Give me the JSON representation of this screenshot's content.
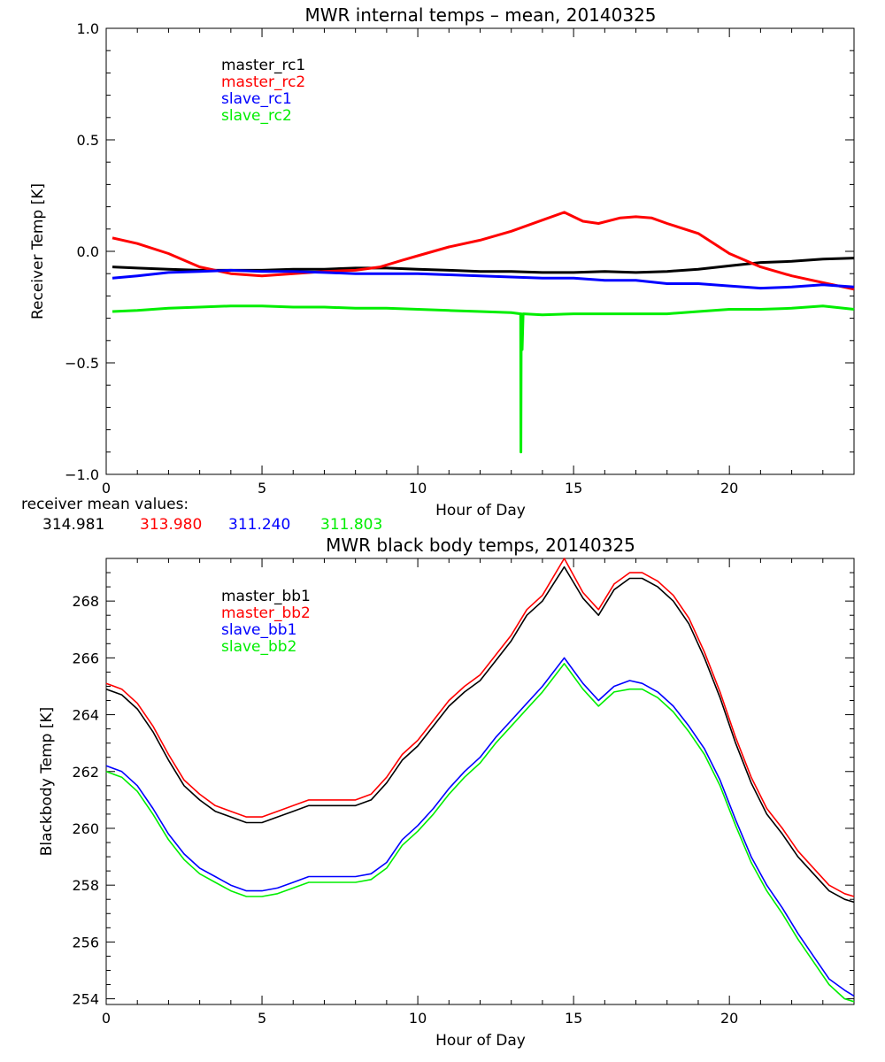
{
  "chart_data": [
    {
      "type": "line",
      "title": "MWR internal temps – mean, 20140325",
      "xlabel": "Hour of Day",
      "ylabel": "Receiver Temp [K]",
      "xlim": [
        0,
        24
      ],
      "ylim": [
        -1.0,
        1.0
      ],
      "xticks": [
        0,
        5,
        10,
        15,
        20
      ],
      "xtick_labels": [
        "0",
        "5",
        "10",
        "15",
        "20"
      ],
      "yticks": [
        -1.0,
        -0.5,
        0.0,
        0.5,
        1.0
      ],
      "ytick_labels": [
        "−1.0",
        "−0.5",
        "0.0",
        "0.5",
        "1.0"
      ],
      "legend_position": "top-left",
      "series": [
        {
          "name": "master_rc1",
          "color": "#000000",
          "x": [
            0.2,
            1,
            2,
            3,
            4,
            5,
            6,
            7,
            8,
            9,
            10,
            11,
            12,
            13,
            14,
            15,
            16,
            17,
            18,
            19,
            20,
            21,
            22,
            23,
            24
          ],
          "y": [
            -0.07,
            -0.075,
            -0.08,
            -0.085,
            -0.085,
            -0.085,
            -0.08,
            -0.08,
            -0.075,
            -0.075,
            -0.08,
            -0.085,
            -0.09,
            -0.09,
            -0.095,
            -0.095,
            -0.09,
            -0.095,
            -0.09,
            -0.08,
            -0.065,
            -0.05,
            -0.045,
            -0.035,
            -0.03
          ]
        },
        {
          "name": "master_rc2",
          "color": "#ff0000",
          "x": [
            0.2,
            1,
            2,
            3,
            4,
            5,
            6,
            7,
            8,
            8.8,
            9.5,
            10,
            11,
            12,
            13,
            14,
            14.7,
            15.3,
            15.8,
            16.5,
            17,
            17.5,
            18,
            19,
            20,
            21,
            22,
            23,
            24
          ],
          "y": [
            0.06,
            0.035,
            -0.01,
            -0.07,
            -0.1,
            -0.11,
            -0.1,
            -0.09,
            -0.085,
            -0.07,
            -0.04,
            -0.02,
            0.02,
            0.05,
            0.09,
            0.14,
            0.175,
            0.135,
            0.125,
            0.15,
            0.155,
            0.15,
            0.125,
            0.08,
            -0.01,
            -0.07,
            -0.11,
            -0.14,
            -0.17
          ]
        },
        {
          "name": "slave_rc1",
          "color": "#0000ff",
          "x": [
            0.2,
            1,
            2,
            3,
            4,
            5,
            6,
            7,
            8,
            9,
            10,
            11,
            12,
            13,
            14,
            15,
            16,
            17,
            18,
            19,
            20,
            21,
            22,
            23,
            24
          ],
          "y": [
            -0.12,
            -0.11,
            -0.095,
            -0.09,
            -0.085,
            -0.09,
            -0.09,
            -0.095,
            -0.1,
            -0.1,
            -0.1,
            -0.105,
            -0.11,
            -0.115,
            -0.12,
            -0.12,
            -0.13,
            -0.13,
            -0.145,
            -0.145,
            -0.155,
            -0.165,
            -0.16,
            -0.15,
            -0.16
          ]
        },
        {
          "name": "slave_rc2",
          "color": "#00ee00",
          "x": [
            0.2,
            1,
            2,
            3,
            4,
            5,
            6,
            7,
            8,
            9,
            10,
            11,
            12,
            13,
            13.3,
            13.31,
            13.32,
            13.35,
            13.38,
            13.4,
            14,
            15,
            16,
            17,
            18,
            19,
            20,
            21,
            22,
            23,
            24
          ],
          "y": [
            -0.27,
            -0.265,
            -0.255,
            -0.25,
            -0.245,
            -0.245,
            -0.25,
            -0.25,
            -0.255,
            -0.255,
            -0.26,
            -0.265,
            -0.27,
            -0.275,
            -0.28,
            -0.9,
            -0.28,
            -0.44,
            -0.28,
            -0.28,
            -0.285,
            -0.28,
            -0.28,
            -0.28,
            -0.28,
            -0.27,
            -0.26,
            -0.26,
            -0.255,
            -0.245,
            -0.26
          ]
        }
      ],
      "annotation_label": "receiver mean values:",
      "annotation_values": [
        {
          "value": "314.981",
          "color": "#000000"
        },
        {
          "value": "313.980",
          "color": "#ff0000"
        },
        {
          "value": "311.240",
          "color": "#0000ff"
        },
        {
          "value": "311.803",
          "color": "#00ee00"
        }
      ]
    },
    {
      "type": "line",
      "title": "MWR black body temps, 20140325",
      "xlabel": "Hour of Day",
      "ylabel": "Blackbody Temp [K]",
      "xlim": [
        0,
        24
      ],
      "ylim": [
        253.8,
        269.5
      ],
      "xticks": [
        0,
        5,
        10,
        15,
        20
      ],
      "xtick_labels": [
        "0",
        "5",
        "10",
        "15",
        "20"
      ],
      "yticks": [
        254,
        256,
        258,
        260,
        262,
        264,
        266,
        268
      ],
      "ytick_labels": [
        "254",
        "256",
        "258",
        "260",
        "262",
        "264",
        "266",
        "268"
      ],
      "legend_position": "top-left",
      "series": [
        {
          "name": "master_bb1",
          "color": "#000000",
          "x": [
            0,
            0.5,
            1,
            1.5,
            2,
            2.5,
            3,
            3.5,
            4,
            4.5,
            5,
            5.5,
            6,
            6.5,
            7,
            7.5,
            8,
            8.5,
            9,
            9.5,
            10,
            10.5,
            11,
            11.5,
            12,
            12.5,
            13,
            13.5,
            14,
            14.7,
            15.3,
            15.8,
            16.3,
            16.8,
            17.2,
            17.7,
            18.2,
            18.7,
            19.2,
            19.7,
            20.2,
            20.7,
            21.2,
            21.7,
            22.2,
            22.7,
            23.2,
            23.7,
            24
          ],
          "y": [
            264.9,
            264.7,
            264.2,
            263.4,
            262.4,
            261.5,
            261.0,
            260.6,
            260.4,
            260.2,
            260.2,
            260.4,
            260.6,
            260.8,
            260.8,
            260.8,
            260.8,
            261.0,
            261.6,
            262.4,
            262.9,
            263.6,
            264.3,
            264.8,
            265.2,
            265.9,
            266.6,
            267.5,
            268.0,
            269.2,
            268.1,
            267.5,
            268.4,
            268.8,
            268.8,
            268.5,
            268.0,
            267.2,
            266.0,
            264.6,
            263.0,
            261.6,
            260.5,
            259.8,
            259.0,
            258.4,
            257.8,
            257.5,
            257.4
          ]
        },
        {
          "name": "master_bb2",
          "color": "#ff0000",
          "x": [
            0,
            0.5,
            1,
            1.5,
            2,
            2.5,
            3,
            3.5,
            4,
            4.5,
            5,
            5.5,
            6,
            6.5,
            7,
            7.5,
            8,
            8.5,
            9,
            9.5,
            10,
            10.5,
            11,
            11.5,
            12,
            12.5,
            13,
            13.5,
            14,
            14.7,
            15.3,
            15.8,
            16.3,
            16.8,
            17.2,
            17.7,
            18.2,
            18.7,
            19.2,
            19.7,
            20.2,
            20.7,
            21.2,
            21.7,
            22.2,
            22.7,
            23.2,
            23.7,
            24
          ],
          "y": [
            265.1,
            264.9,
            264.4,
            263.6,
            262.6,
            261.7,
            261.2,
            260.8,
            260.6,
            260.4,
            260.4,
            260.6,
            260.8,
            261.0,
            261.0,
            261.0,
            261.0,
            261.2,
            261.8,
            262.6,
            263.1,
            263.8,
            264.5,
            265.0,
            265.4,
            266.1,
            266.8,
            267.7,
            268.2,
            269.5,
            268.3,
            267.7,
            268.6,
            269.0,
            269.0,
            268.7,
            268.2,
            267.4,
            266.2,
            264.8,
            263.2,
            261.8,
            260.7,
            260.0,
            259.2,
            258.6,
            258.0,
            257.7,
            257.6
          ]
        },
        {
          "name": "slave_bb1",
          "color": "#0000ff",
          "x": [
            0,
            0.5,
            1,
            1.5,
            2,
            2.5,
            3,
            3.5,
            4,
            4.5,
            5,
            5.5,
            6,
            6.5,
            7,
            7.5,
            8,
            8.5,
            9,
            9.5,
            10,
            10.5,
            11,
            11.5,
            12,
            12.5,
            13,
            13.5,
            14,
            14.7,
            15.3,
            15.8,
            16.3,
            16.8,
            17.2,
            17.7,
            18.2,
            18.7,
            19.2,
            19.7,
            20.2,
            20.7,
            21.2,
            21.7,
            22.2,
            22.7,
            23.2,
            23.7,
            24
          ],
          "y": [
            262.2,
            262.0,
            261.5,
            260.7,
            259.8,
            259.1,
            258.6,
            258.3,
            258.0,
            257.8,
            257.8,
            257.9,
            258.1,
            258.3,
            258.3,
            258.3,
            258.3,
            258.4,
            258.8,
            259.6,
            260.1,
            260.7,
            261.4,
            262.0,
            262.5,
            263.2,
            263.8,
            264.4,
            265.0,
            266.0,
            265.1,
            264.5,
            265.0,
            265.2,
            265.1,
            264.8,
            264.3,
            263.6,
            262.8,
            261.7,
            260.3,
            259.0,
            258.0,
            257.2,
            256.3,
            255.5,
            254.7,
            254.3,
            254.1
          ]
        },
        {
          "name": "slave_bb2",
          "color": "#00ee00",
          "x": [
            0,
            0.5,
            1,
            1.5,
            2,
            2.5,
            3,
            3.5,
            4,
            4.5,
            5,
            5.5,
            6,
            6.5,
            7,
            7.5,
            8,
            8.5,
            9,
            9.5,
            10,
            10.5,
            11,
            11.5,
            12,
            12.5,
            13,
            13.5,
            14,
            14.7,
            15.3,
            15.8,
            16.3,
            16.8,
            17.2,
            17.7,
            18.2,
            18.7,
            19.2,
            19.7,
            20.2,
            20.7,
            21.2,
            21.7,
            22.2,
            22.7,
            23.2,
            23.7,
            24
          ],
          "y": [
            262.0,
            261.8,
            261.3,
            260.5,
            259.6,
            258.9,
            258.4,
            258.1,
            257.8,
            257.6,
            257.6,
            257.7,
            257.9,
            258.1,
            258.1,
            258.1,
            258.1,
            258.2,
            258.6,
            259.4,
            259.9,
            260.5,
            261.2,
            261.8,
            262.3,
            263.0,
            263.6,
            264.2,
            264.8,
            265.8,
            264.9,
            264.3,
            264.8,
            264.9,
            264.9,
            264.6,
            264.1,
            263.4,
            262.6,
            261.5,
            260.1,
            258.8,
            257.8,
            257.0,
            256.1,
            255.3,
            254.5,
            254.0,
            253.9
          ]
        }
      ]
    }
  ]
}
